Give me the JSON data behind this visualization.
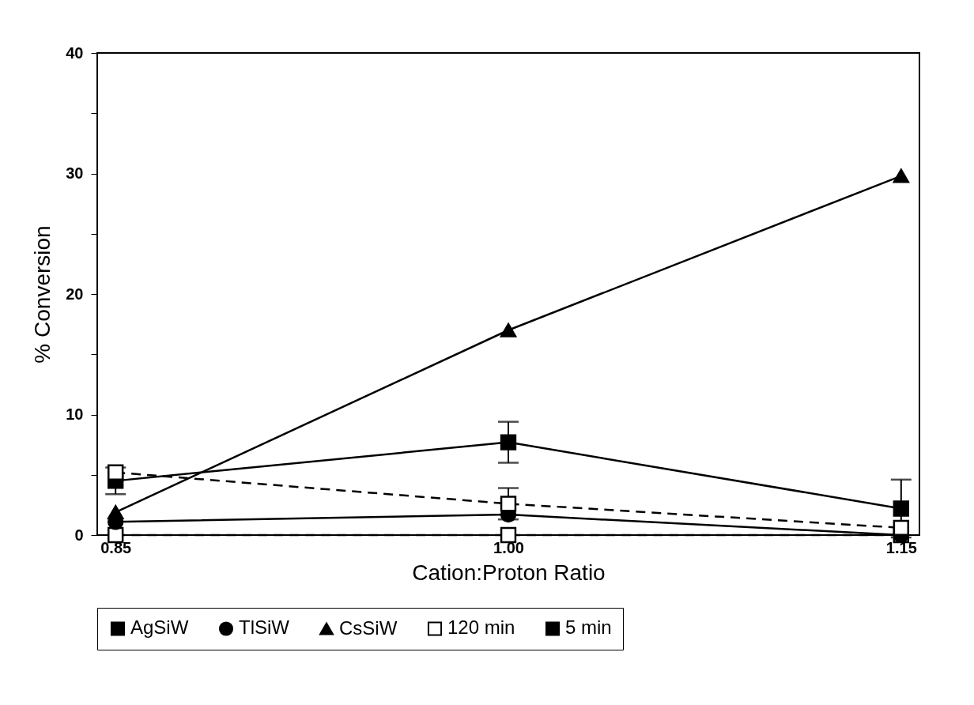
{
  "chart_data": {
    "type": "line",
    "xlabel": "Cation:Proton Ratio",
    "ylabel": "% Conversion",
    "x": [
      0.85,
      1.0,
      1.15
    ],
    "xlim": [
      0.843,
      1.157
    ],
    "xticks": [
      {
        "value": 0.85,
        "label": "0.85"
      },
      {
        "value": 1.0,
        "label": "1.00"
      },
      {
        "value": 1.15,
        "label": "1.15"
      }
    ],
    "ylim": [
      0,
      40
    ],
    "yticks": [
      0,
      {
        "value": 5,
        "label": null
      },
      10,
      {
        "value": 15,
        "label": null
      },
      20,
      {
        "value": 25,
        "label": null
      },
      30,
      {
        "value": 35,
        "label": null
      },
      40
    ],
    "grid": false,
    "legend": "bottom",
    "series": [
      {
        "name": "AgSiW",
        "color": "#000000",
        "marker": "square",
        "line_style": "solid",
        "values": [
          4.5,
          7.7,
          2.2
        ],
        "errors": [
          1.1,
          1.7,
          2.4
        ]
      },
      {
        "name": "TlSiW",
        "color": "#000000",
        "marker": "circle",
        "line_style": "solid",
        "values": [
          1.1,
          1.7,
          0
        ]
      },
      {
        "name": "CsSiW",
        "color": "#000000",
        "marker": "triangle",
        "line_style": "solid",
        "values": [
          1.9,
          17,
          29.8
        ]
      },
      {
        "name": "120 min",
        "color": "#000000",
        "marker": "square",
        "line_style": "dashed",
        "values": [
          5.2,
          2.6,
          0.6
        ],
        "errors": [
          null,
          1.3,
          null
        ]
      },
      {
        "color": "#000000",
        "marker": "square",
        "line_style": "dashed",
        "values": [
          0,
          0,
          0
        ]
      },
      {
        "name": "5 min",
        "color": "#000000",
        "marker": "square",
        "line_style": "solid",
        "values": [
          null,
          null,
          null
        ]
      }
    ]
  }
}
